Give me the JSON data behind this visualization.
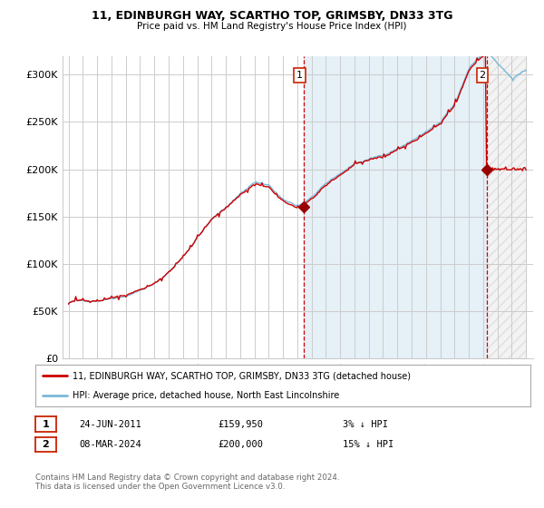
{
  "title": "11, EDINBURGH WAY, SCARTHO TOP, GRIMSBY, DN33 3TG",
  "subtitle": "Price paid vs. HM Land Registry's House Price Index (HPI)",
  "ylim": [
    0,
    320000
  ],
  "yticks": [
    0,
    50000,
    100000,
    150000,
    200000,
    250000,
    300000
  ],
  "ytick_labels": [
    "£0",
    "£50K",
    "£100K",
    "£150K",
    "£200K",
    "£250K",
    "£300K"
  ],
  "hpi_color": "#7ab8d9",
  "price_color": "#cc0000",
  "marker_color": "#990000",
  "annotation1_label": "1",
  "annotation2_label": "2",
  "legend_entry1": "11, EDINBURGH WAY, SCARTHO TOP, GRIMSBY, DN33 3TG (detached house)",
  "legend_entry2": "HPI: Average price, detached house, North East Lincolnshire",
  "table_row1_num": "1",
  "table_row1_date": "24-JUN-2011",
  "table_row1_price": "£159,950",
  "table_row1_hpi": "3% ↓ HPI",
  "table_row2_num": "2",
  "table_row2_date": "08-MAR-2024",
  "table_row2_price": "£200,000",
  "table_row2_hpi": "15% ↓ HPI",
  "footer": "Contains HM Land Registry data © Crown copyright and database right 2024.\nThis data is licensed under the Open Government Licence v3.0.",
  "bg_color": "#ffffff",
  "grid_color": "#cccccc",
  "fill_color": "#daeaf5",
  "vline_color": "#cc0000",
  "sale1_year_idx": 197,
  "sale2_year_idx": 351,
  "sale1_value": 159950,
  "sale2_value": 200000
}
